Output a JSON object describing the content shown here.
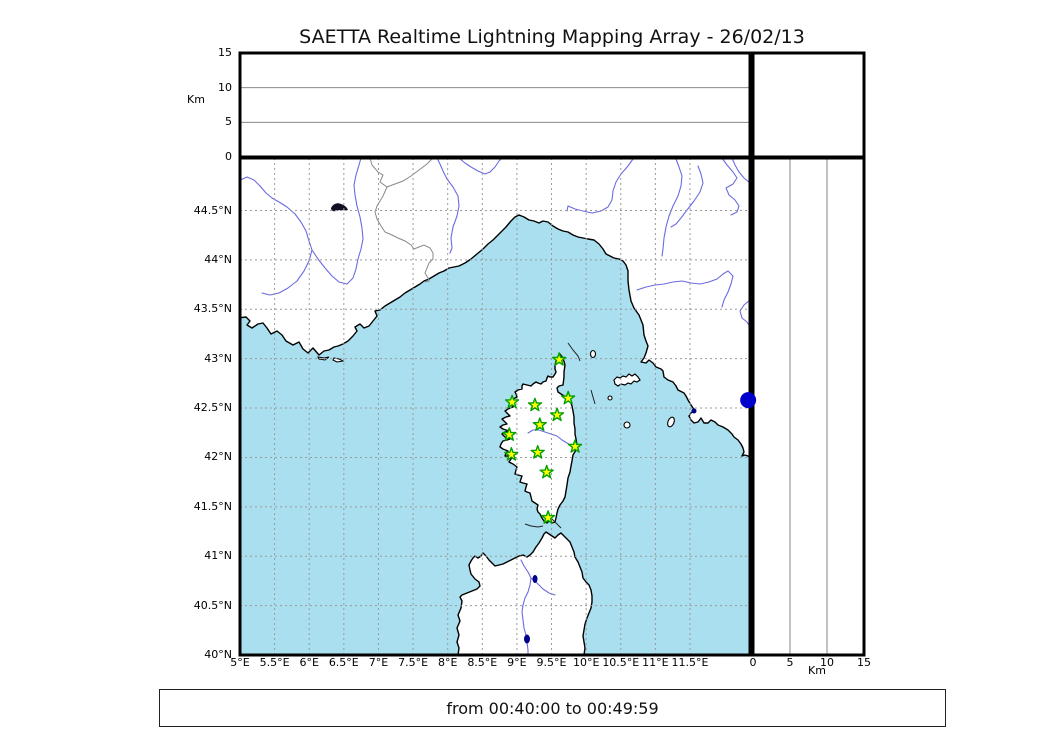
{
  "title": "SAETTA Realtime Lightning Mapping Array - 26/02/13",
  "footer": {
    "text": "from 00:40:00 to 00:49:59"
  },
  "colors": {
    "sea": "#aadff0",
    "land": "#ffffff",
    "coastline": "#000000",
    "river": "#6b6be0",
    "country_border": "#888888",
    "grid": "#9a9a9a",
    "panel_grid": "#777777",
    "station_fill": "#ffff00",
    "station_edge": "#00a000",
    "lightning_dot": "#0000cd",
    "lake": "#00008b"
  },
  "axes": {
    "altitude": {
      "label": "Km",
      "tick_labels": [
        "0",
        "5",
        "10",
        "15"
      ],
      "tick_values": [
        0,
        5,
        10,
        15
      ],
      "max": 15
    },
    "longitude": {
      "tick_labels": [
        "5°E",
        "5.5°E",
        "6°E",
        "6.5°E",
        "7°E",
        "7.5°E",
        "8°E",
        "8.5°E",
        "9°E",
        "9.5°E",
        "10°E",
        "10.5°E",
        "11°E",
        "11.5°E"
      ],
      "tick_values": [
        5,
        5.5,
        6,
        6.5,
        7,
        7.5,
        8,
        8.5,
        9,
        9.5,
        10,
        10.5,
        11,
        11.5
      ]
    },
    "latitude": {
      "tick_labels": [
        "40°N",
        "40.5°N",
        "41°N",
        "41.5°N",
        "42°N",
        "42.5°N",
        "43°N",
        "43.5°N",
        "44°N",
        "44.5°N"
      ],
      "tick_values": [
        40,
        40.5,
        41,
        41.5,
        42,
        42.5,
        43,
        43.5,
        44,
        44.5
      ]
    }
  },
  "chart_data": {
    "type": "scatter",
    "title": "SAETTA Realtime Lightning Mapping Array - 26/02/13",
    "time_window": "from 00:40:00 to 00:49:59",
    "map_extent": {
      "lon_range": [
        5,
        12.37
      ],
      "lat_range": [
        40,
        45.03
      ]
    },
    "grid": "dashed every 0.5 degree",
    "altitude_panels": {
      "unit": "Km",
      "range": [
        0,
        15
      ],
      "gridlines": [
        5,
        10
      ],
      "data_points": []
    },
    "series": [
      {
        "name": "lma-stations",
        "marker": "star",
        "fill": "#ffff00",
        "edge": "#00a000",
        "points": [
          {
            "lon": 9.61,
            "lat": 42.99
          },
          {
            "lon": 9.74,
            "lat": 42.6
          },
          {
            "lon": 8.93,
            "lat": 42.56
          },
          {
            "lon": 9.26,
            "lat": 42.53
          },
          {
            "lon": 9.58,
            "lat": 42.43
          },
          {
            "lon": 9.33,
            "lat": 42.33
          },
          {
            "lon": 8.89,
            "lat": 42.23
          },
          {
            "lon": 9.84,
            "lat": 42.11
          },
          {
            "lon": 9.3,
            "lat": 42.05
          },
          {
            "lon": 8.92,
            "lat": 42.03
          },
          {
            "lon": 9.43,
            "lat": 41.85
          },
          {
            "lon": 9.45,
            "lat": 41.39
          }
        ]
      },
      {
        "name": "lightning-sources",
        "marker": "circle",
        "radius_px": 8,
        "fill": "#0000cd",
        "points": [
          {
            "lon": 12.34,
            "lat": 42.58
          }
        ]
      }
    ]
  }
}
